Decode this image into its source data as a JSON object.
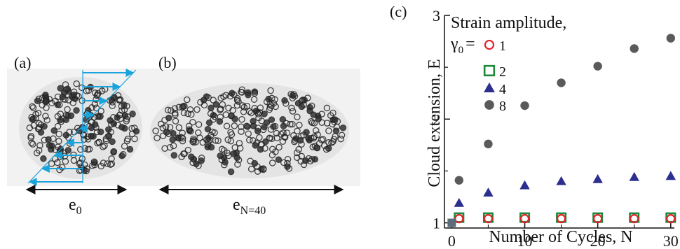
{
  "panels": {
    "a": {
      "label": "(a)",
      "dimension_label": "e",
      "dimension_sub": "0"
    },
    "b": {
      "label": "(b)",
      "dimension_label": "e",
      "dimension_sub": "N=40"
    },
    "c": {
      "label": "(c)"
    }
  },
  "colors": {
    "arrow": "#1aa3dd",
    "series_1": "#e0222a",
    "series_2": "#1b8a3a",
    "series_4": "#2c2f8f",
    "series_8": "#5a5a5a",
    "particle": "#222222"
  },
  "chart_data": {
    "type": "scatter",
    "xlabel": "Number of Cycles, N",
    "ylabel": "Cloud extension, E",
    "xlim": [
      -1,
      30.5
    ],
    "ylim": [
      0.95,
      3.0
    ],
    "x_ticks": [
      "0",
      "10",
      "20",
      "30"
    ],
    "y_ticks": [
      "1",
      "2",
      "3"
    ],
    "legend": {
      "title_line1": "Strain amplitude,",
      "title_symbol": "γ",
      "title_sub": "0",
      "title_eq": "=",
      "placement": "top-left"
    },
    "series": [
      {
        "name": "1",
        "marker": "circle-open",
        "x": [
          0,
          1,
          5,
          10,
          15,
          20,
          25,
          30
        ],
        "y": [
          1.0,
          1.04,
          1.04,
          1.04,
          1.04,
          1.04,
          1.04,
          1.04
        ]
      },
      {
        "name": "2",
        "marker": "square-open",
        "x": [
          0,
          1,
          5,
          10,
          15,
          20,
          25,
          30
        ],
        "y": [
          1.0,
          1.05,
          1.05,
          1.05,
          1.05,
          1.05,
          1.05,
          1.05
        ]
      },
      {
        "name": "4",
        "marker": "triangle-filled",
        "x": [
          0,
          1,
          5,
          10,
          15,
          20,
          25,
          30
        ],
        "y": [
          1.0,
          1.19,
          1.29,
          1.36,
          1.4,
          1.42,
          1.44,
          1.45
        ]
      },
      {
        "name": "8",
        "marker": "circle-filled",
        "x": [
          0,
          1,
          5,
          10,
          15,
          20,
          25,
          30
        ],
        "y": [
          1.0,
          1.41,
          1.76,
          2.13,
          2.35,
          2.51,
          2.68,
          2.78
        ]
      }
    ]
  }
}
